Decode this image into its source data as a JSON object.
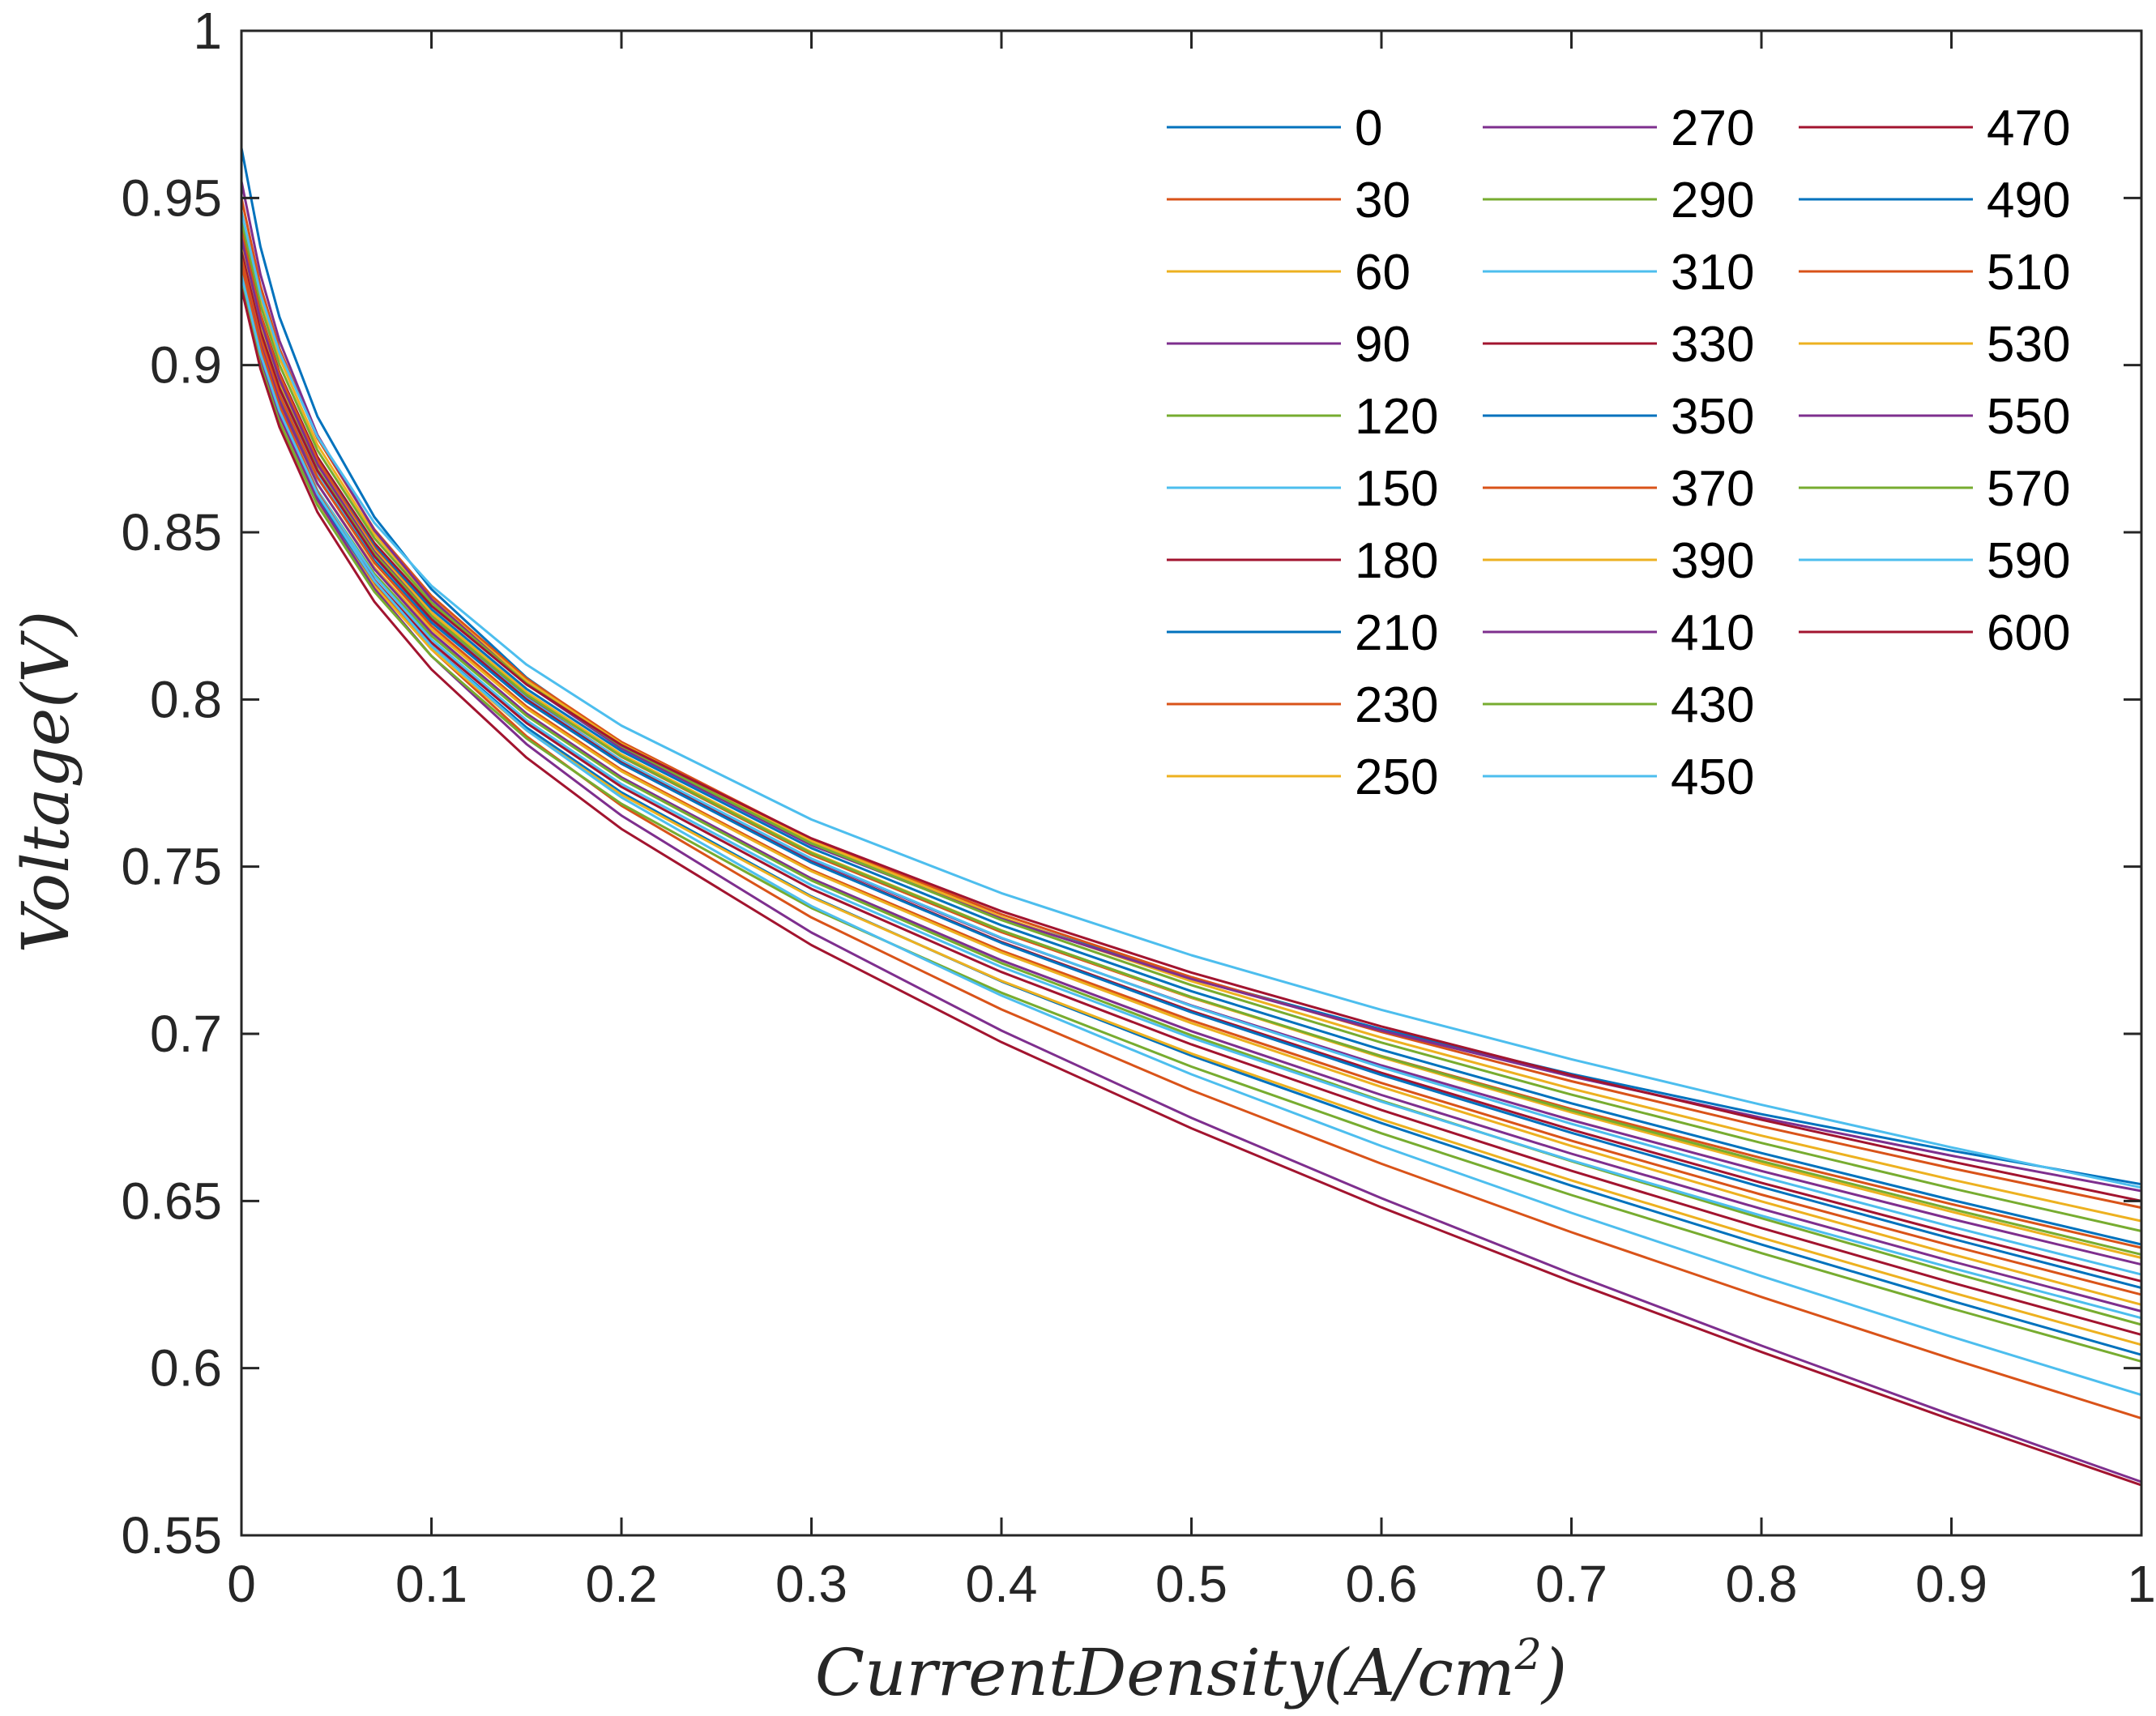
{
  "chart_data": {
    "type": "line",
    "title": "",
    "xlabel": "CurrentDensity(A/cm",
    "xlabel_sup": "2",
    "xlabel_end": ")",
    "ylabel": "Voltage(V)",
    "xlim": [
      0,
      1
    ],
    "ylim": [
      0.55,
      1
    ],
    "xticks": [
      0,
      0.1,
      0.2,
      0.3,
      0.4,
      0.5,
      0.6,
      0.7,
      0.8,
      0.9,
      1
    ],
    "xtick_labels": [
      "0",
      "0.1",
      "0.2",
      "0.3",
      "0.4",
      "0.5",
      "0.6",
      "0.7",
      "0.8",
      "0.9",
      "1"
    ],
    "yticks": [
      0.55,
      0.6,
      0.65,
      0.7,
      0.75,
      0.8,
      0.85,
      0.9,
      0.95,
      1
    ],
    "ytick_labels": [
      "0.55",
      "0.6",
      "0.65",
      "0.7",
      "0.75",
      "0.8",
      "0.85",
      "0.9",
      "0.95",
      "1"
    ],
    "grid": false,
    "legend_position": "top-right",
    "legend_columns": 3,
    "x": [
      0,
      0.01,
      0.02,
      0.04,
      0.07,
      0.1,
      0.15,
      0.2,
      0.3,
      0.4,
      0.5,
      0.6,
      0.7,
      0.8,
      0.9,
      1.0
    ],
    "series": [
      {
        "name": "0",
        "color": "#0072BD",
        "start": 0.965,
        "v01": 0.833,
        "end": 0.655
      },
      {
        "name": "30",
        "color": "#D95319",
        "start": 0.95,
        "v01": 0.831,
        "end": 0.648
      },
      {
        "name": "60",
        "color": "#EDB120",
        "start": 0.946,
        "v01": 0.83,
        "end": 0.644
      },
      {
        "name": "90",
        "color": "#7E2F8E",
        "start": 0.955,
        "v01": 0.83,
        "end": 0.653
      },
      {
        "name": "120",
        "color": "#77AC30",
        "start": 0.943,
        "v01": 0.829,
        "end": 0.641
      },
      {
        "name": "150",
        "color": "#4DBEEE",
        "start": 0.946,
        "v01": 0.834,
        "end": 0.654
      },
      {
        "name": "180",
        "color": "#A2142F",
        "start": 0.94,
        "v01": 0.828,
        "end": 0.65
      },
      {
        "name": "210",
        "color": "#0072BD",
        "start": 0.938,
        "v01": 0.827,
        "end": 0.637
      },
      {
        "name": "230",
        "color": "#D95319",
        "start": 0.94,
        "v01": 0.826,
        "end": 0.636
      },
      {
        "name": "250",
        "color": "#EDB120",
        "start": 0.936,
        "v01": 0.826,
        "end": 0.633
      },
      {
        "name": "270",
        "color": "#7E2F8E",
        "start": 0.938,
        "v01": 0.825,
        "end": 0.631
      },
      {
        "name": "290",
        "color": "#77AC30",
        "start": 0.934,
        "v01": 0.825,
        "end": 0.634
      },
      {
        "name": "310",
        "color": "#4DBEEE",
        "start": 0.932,
        "v01": 0.824,
        "end": 0.628
      },
      {
        "name": "330",
        "color": "#A2142F",
        "start": 0.934,
        "v01": 0.824,
        "end": 0.626
      },
      {
        "name": "350",
        "color": "#0072BD",
        "start": 0.93,
        "v01": 0.823,
        "end": 0.624
      },
      {
        "name": "370",
        "color": "#D95319",
        "start": 0.932,
        "v01": 0.822,
        "end": 0.622
      },
      {
        "name": "390",
        "color": "#EDB120",
        "start": 0.928,
        "v01": 0.821,
        "end": 0.619
      },
      {
        "name": "410",
        "color": "#7E2F8E",
        "start": 0.93,
        "v01": 0.82,
        "end": 0.617
      },
      {
        "name": "430",
        "color": "#77AC30",
        "start": 0.926,
        "v01": 0.819,
        "end": 0.613
      },
      {
        "name": "450",
        "color": "#4DBEEE",
        "start": 0.928,
        "v01": 0.818,
        "end": 0.615
      },
      {
        "name": "470",
        "color": "#A2142F",
        "start": 0.925,
        "v01": 0.817,
        "end": 0.61
      },
      {
        "name": "490",
        "color": "#0072BD",
        "start": 0.925,
        "v01": 0.816,
        "end": 0.604
      },
      {
        "name": "510",
        "color": "#D95319",
        "start": 0.93,
        "v01": 0.815,
        "end": 0.585
      },
      {
        "name": "530",
        "color": "#EDB120",
        "start": 0.924,
        "v01": 0.815,
        "end": 0.607
      },
      {
        "name": "550",
        "color": "#7E2F8E",
        "start": 0.926,
        "v01": 0.813,
        "end": 0.566
      },
      {
        "name": "570",
        "color": "#77AC30",
        "start": 0.924,
        "v01": 0.813,
        "end": 0.602
      },
      {
        "name": "590",
        "color": "#4DBEEE",
        "start": 0.927,
        "v01": 0.816,
        "end": 0.592
      },
      {
        "name": "600",
        "color": "#A2142F",
        "start": 0.923,
        "v01": 0.809,
        "end": 0.565
      }
    ]
  }
}
